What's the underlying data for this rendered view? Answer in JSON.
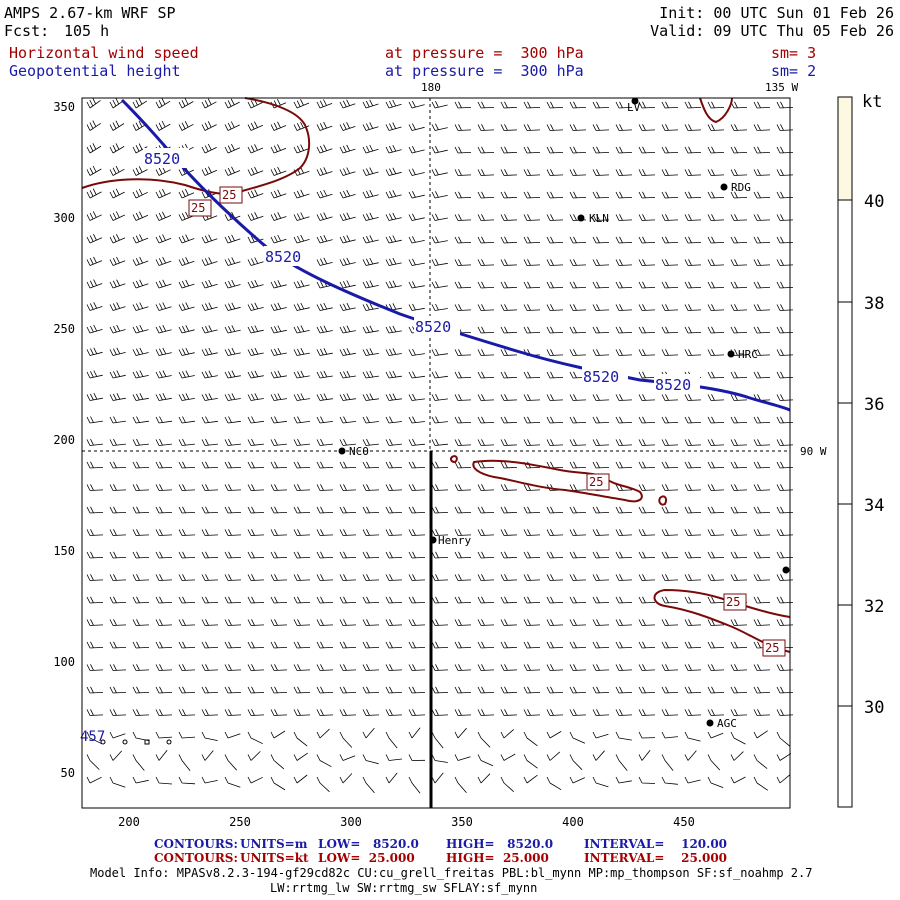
{
  "header": {
    "model": "AMPS 2.67-km WRF SP",
    "forecast_label": "Fcst:",
    "forecast_hours": "105 h",
    "init": "Init: 00 UTC Sun 01 Feb 26",
    "valid": "Valid: 09 UTC Thu 05 Feb 26",
    "field1": "Horizontal wind speed",
    "field1_level": "at pressure =  300 hPa",
    "field1_sm": "sm= 3",
    "field2": "Geopotential height",
    "field2_level": "at pressure =  300 hPa",
    "field2_sm": "sm= 2"
  },
  "map": {
    "x_ticks": [
      "200",
      "250",
      "300",
      "350",
      "400",
      "450"
    ],
    "y_ticks": [
      "350",
      "300",
      "250",
      "200",
      "150",
      "100",
      "50"
    ],
    "meridian_label": "180",
    "meridian_135_label": "135 W",
    "parallel_label": "90 W",
    "height_contour_label": "8520",
    "speed_contour_label": "25",
    "partial_label": "457",
    "stations": [
      {
        "name": "LV"
      },
      {
        "name": "RDG"
      },
      {
        "name": "KLN"
      },
      {
        "name": "HRC"
      },
      {
        "name": "NCO"
      },
      {
        "name": "Henry"
      },
      {
        "name": "AGC"
      }
    ]
  },
  "colorbar": {
    "unit": "kt",
    "labels": [
      "40",
      "38",
      "36",
      "34",
      "32",
      "30"
    ],
    "top_color": "#fdf8e1"
  },
  "footer": {
    "row1": {
      "contours": "CONTOURS:",
      "units": "UNITS=m",
      "low": "LOW=   8520.0",
      "high": "HIGH=   8520.0",
      "interval": "INTERVAL=    120.00"
    },
    "row2": {
      "contours": "CONTOURS:",
      "units": "UNITS=kt",
      "low": "LOW=  25.000",
      "high": "HIGH=  25.000",
      "interval": "INTERVAL=    25.000"
    },
    "model_info": "Model Info: MPASv8.2.3-194-gf29cd82c CU:cu_grell_freitas PBL:bl_mynn MP:mp_thompson SF:sf_noahmp 2.7",
    "model_info2": "LW:rrtmg_lw SW:rrtmg_sw SFLAY:sf_mynn"
  },
  "colors": {
    "height_contour": "#1a1aa8",
    "speed_contour": "#7a0a0a",
    "barbs": "#000000"
  }
}
